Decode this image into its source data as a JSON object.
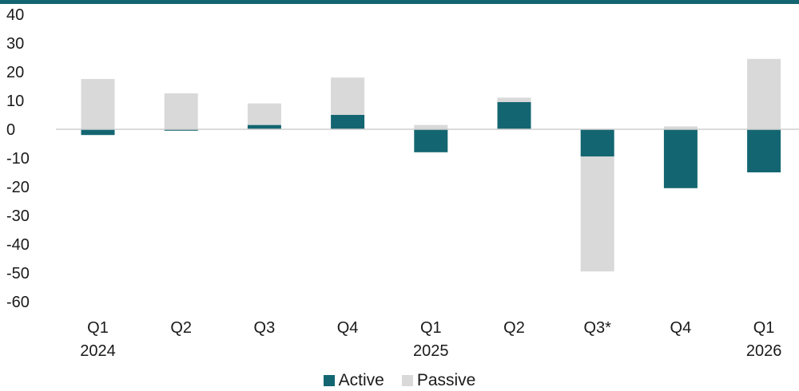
{
  "chart_data": {
    "type": "bar",
    "stacked": true,
    "categories": [
      {
        "label": "Q1",
        "sublabel": "2024"
      },
      {
        "label": "Q2",
        "sublabel": ""
      },
      {
        "label": "Q3",
        "sublabel": ""
      },
      {
        "label": "Q4",
        "sublabel": ""
      },
      {
        "label": "Q1",
        "sublabel": "2025"
      },
      {
        "label": "Q2",
        "sublabel": ""
      },
      {
        "label": "Q3*",
        "sublabel": ""
      },
      {
        "label": "Q4",
        "sublabel": ""
      },
      {
        "label": "Q1",
        "sublabel": "2026"
      }
    ],
    "series": [
      {
        "name": "Active",
        "color": "#136671",
        "values": [
          -2,
          -0.5,
          1.5,
          5,
          -8,
          9.5,
          -9.5,
          -20.5,
          -15
        ]
      },
      {
        "name": "Passive",
        "color": "#d9d9d9",
        "values": [
          17.5,
          12.5,
          7.5,
          13,
          1.5,
          1.5,
          -40,
          1,
          24.5
        ]
      }
    ],
    "ylim": [
      -60,
      40
    ],
    "yticks": [
      40,
      30,
      20,
      10,
      0,
      -10,
      -20,
      -30,
      -40,
      -50,
      -60
    ],
    "gridlines": false,
    "zero_line": true,
    "legend_position": "bottom"
  },
  "legend": {
    "active_label": "Active",
    "passive_label": "Passive"
  }
}
